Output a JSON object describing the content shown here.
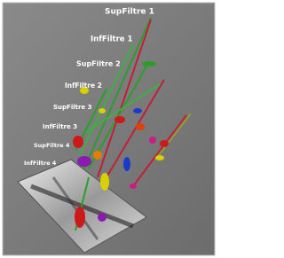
{
  "labels": [
    "SupFiltre 1",
    "InfFiltre 1",
    "SupFiltre 2",
    "InfFiltre 2",
    "SupFiltre 3",
    "InfFiltre 3",
    "SupFiltre 4",
    "InfFiltre 4"
  ]
}
